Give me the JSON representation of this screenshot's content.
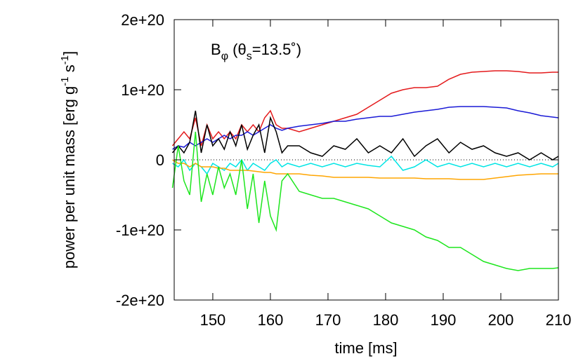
{
  "chart_data": {
    "type": "line",
    "annotation": [
      "B",
      "φ",
      " (θ",
      "s",
      "=13.5˚)"
    ],
    "x_label": "time [ms]",
    "y_label": [
      "power per unit mass [erg g",
      "-1",
      " s",
      "-1",
      "]"
    ],
    "x": [
      143,
      144,
      145,
      146,
      147,
      148,
      149,
      150,
      151,
      152,
      153,
      154,
      155,
      156,
      157,
      158,
      159,
      160,
      161,
      162,
      163,
      165,
      167,
      169,
      171,
      173,
      175,
      177,
      179,
      181,
      183,
      185,
      187,
      189,
      191,
      193,
      195,
      197,
      199,
      201,
      203,
      205,
      207,
      209,
      210
    ],
    "series": [
      {
        "color": "#e41a1c",
        "values": [
          2e+19,
          3e+19,
          4e+19,
          3e+19,
          6e+19,
          2e+19,
          5e+19,
          3e+19,
          4e+19,
          3e+19,
          4e+19,
          3e+19,
          5e+19,
          4e+19,
          5e+19,
          4e+19,
          6e+19,
          7e+19,
          5e+19,
          4.5e+19,
          4.5e+19,
          4e+19,
          4.5e+19,
          5e+19,
          5.5e+19,
          6e+19,
          6.5e+19,
          7.5e+19,
          8.5e+19,
          9.5e+19,
          1e+20,
          1.03e+20,
          1.03e+20,
          1.05e+20,
          1.15e+20,
          1.22e+20,
          1.25e+20,
          1.26e+20,
          1.27e+20,
          1.27e+20,
          1.26e+20,
          1.24e+20,
          1.24e+20,
          1.25e+20,
          1.25e+20
        ]
      },
      {
        "color": "#1a1ad6",
        "values": [
          1.5e+19,
          2e+19,
          1.8e+19,
          2.5e+19,
          2e+19,
          2.5e+19,
          3e+19,
          2.5e+19,
          3e+19,
          3.5e+19,
          3e+19,
          3.5e+19,
          3.5e+19,
          4e+19,
          3.5e+19,
          4e+19,
          4.5e+19,
          5e+19,
          4.5e+19,
          4.2e+19,
          4.5e+19,
          4.8e+19,
          5e+19,
          5.2e+19,
          5.5e+19,
          5.5e+19,
          5.8e+19,
          6e+19,
          6.2e+19,
          6.2e+19,
          6.5e+19,
          6.8e+19,
          7e+19,
          7.2e+19,
          7.5e+19,
          7.6e+19,
          7.6e+19,
          7.6e+19,
          7.5e+19,
          7.4e+19,
          7e+19,
          6.7e+19,
          6.3e+19,
          6.1e+19,
          6e+19
        ]
      },
      {
        "color": "#000000",
        "values": [
          1e+19,
          2e+19,
          1e+19,
          2.5e+19,
          7e+19,
          1e+19,
          5e+19,
          2e+19,
          3e+19,
          1.5e+19,
          4e+19,
          2e+19,
          5e+19,
          1.5e+19,
          3.5e+19,
          5e+19,
          1e+19,
          6e+19,
          4e+19,
          1e+19,
          2e+19,
          2e+19,
          1e+19,
          5e+18,
          2e+19,
          1.5e+19,
          3e+19,
          1e+19,
          2e+19,
          1e+19,
          3e+19,
          5e+18,
          2e+19,
          3e+19,
          1e+19,
          2.5e+19,
          1.5e+19,
          2e+19,
          1e+19,
          5e+18,
          1e+19,
          0,
          1e+19,
          0,
          5e+18
        ]
      },
      {
        "color": "#00e5e5",
        "values": [
          -5e+18,
          -1e+19,
          0,
          -1.5e+19,
          -5e+18,
          -1e+19,
          -2e+19,
          -5e+18,
          -1e+19,
          -1.5e+19,
          -5e+18,
          -1e+19,
          0,
          -1.5e+19,
          -5e+18,
          -1e+19,
          -1.5e+19,
          -5e+18,
          0,
          -1e+19,
          -5e+18,
          -1e+19,
          -5e+18,
          -1e+19,
          -5e+18,
          -1e+19,
          -5e+18,
          -8e+18,
          -1e+19,
          5e+18,
          -1.5e+19,
          -1e+19,
          0,
          -1e+19,
          -5e+18,
          -1e+19,
          -5e+18,
          -1e+19,
          -5e+18,
          -1e+19,
          -5e+18,
          -1e+19,
          -5e+18,
          -1e+19,
          -5e+18
        ]
      },
      {
        "color": "#ffa500",
        "values": [
          0,
          -5e+18,
          -5e+18,
          -1e+19,
          -5e+18,
          -1e+19,
          -1e+19,
          -1e+19,
          -1.2e+19,
          -1.2e+19,
          -1.5e+19,
          -1.5e+19,
          -1.5e+19,
          -1.5e+19,
          -1.6e+19,
          -1.7e+19,
          -1.8e+19,
          -1.8e+19,
          -2e+19,
          -2e+19,
          -2e+19,
          -2e+19,
          -2.2e+19,
          -2.3e+19,
          -2.5e+19,
          -2.5e+19,
          -2.5e+19,
          -2.5e+19,
          -2.6e+19,
          -2.6e+19,
          -2.6e+19,
          -2.6e+19,
          -2.7e+19,
          -2.7e+19,
          -2.7e+19,
          -2.8e+19,
          -2.8e+19,
          -2.8e+19,
          -2.6e+19,
          -2.4e+19,
          -2.2e+19,
          -2.1e+19,
          -2e+19,
          -2e+19,
          -2e+19
        ]
      },
      {
        "color": "#1ee61e",
        "values": [
          -4e+19,
          2e+19,
          -3e+19,
          -5e+19,
          4e+19,
          -6e+19,
          -2e+19,
          -5e+19,
          -1e+19,
          -4e+19,
          -2e+19,
          -5e+19,
          0,
          -7e+19,
          -2e+19,
          -9e+19,
          -3e+19,
          -8e+19,
          -1e+20,
          -3e+19,
          -2e+19,
          -4.5e+19,
          -5e+19,
          -5.5e+19,
          -5.5e+19,
          -6e+19,
          -6.5e+19,
          -7e+19,
          -8e+19,
          -9e+19,
          -9.5e+19,
          -1e+20,
          -1.1e+20,
          -1.15e+20,
          -1.25e+20,
          -1.25e+20,
          -1.35e+20,
          -1.45e+20,
          -1.5e+20,
          -1.55e+20,
          -1.58e+20,
          -1.55e+20,
          -1.55e+20,
          -1.55e+20,
          -1.54e+20
        ]
      }
    ],
    "xlim": [
      143.3,
      210
    ],
    "xticks": [
      150,
      160,
      170,
      180,
      190,
      200,
      210
    ],
    "ylim": [
      -2e+20,
      2e+20
    ],
    "yticks": [
      {
        "value": -2e+20,
        "label": "-2e+20"
      },
      {
        "value": -1e+20,
        "label": "-1e+20"
      },
      0,
      {
        "value": 1e+20,
        "label": "1e+20"
      },
      {
        "value": 2e+20,
        "label": "2e+20"
      }
    ],
    "zero_line": true
  }
}
